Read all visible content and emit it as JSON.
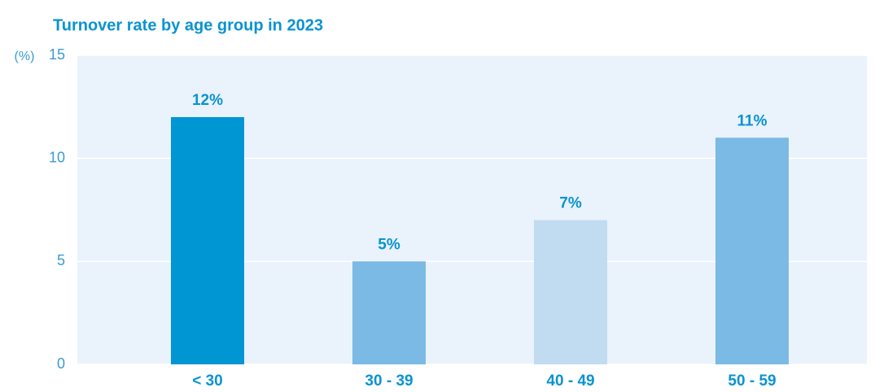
{
  "chart_data": {
    "type": "bar",
    "title": "Turnover rate by age group in 2023",
    "y_label": "(%)",
    "categories": [
      "< 30",
      "30 - 39",
      "40 - 49",
      "50 - 59"
    ],
    "values": [
      12,
      5,
      7,
      11
    ],
    "value_labels": [
      "12%",
      "5%",
      "7%",
      "11%"
    ],
    "colors": [
      "#0095d3",
      "#7abae4",
      "#c1dcf1",
      "#7abae4"
    ],
    "ylim": [
      0,
      15
    ],
    "yticks": [
      0,
      5,
      10,
      15
    ],
    "grid": true
  }
}
